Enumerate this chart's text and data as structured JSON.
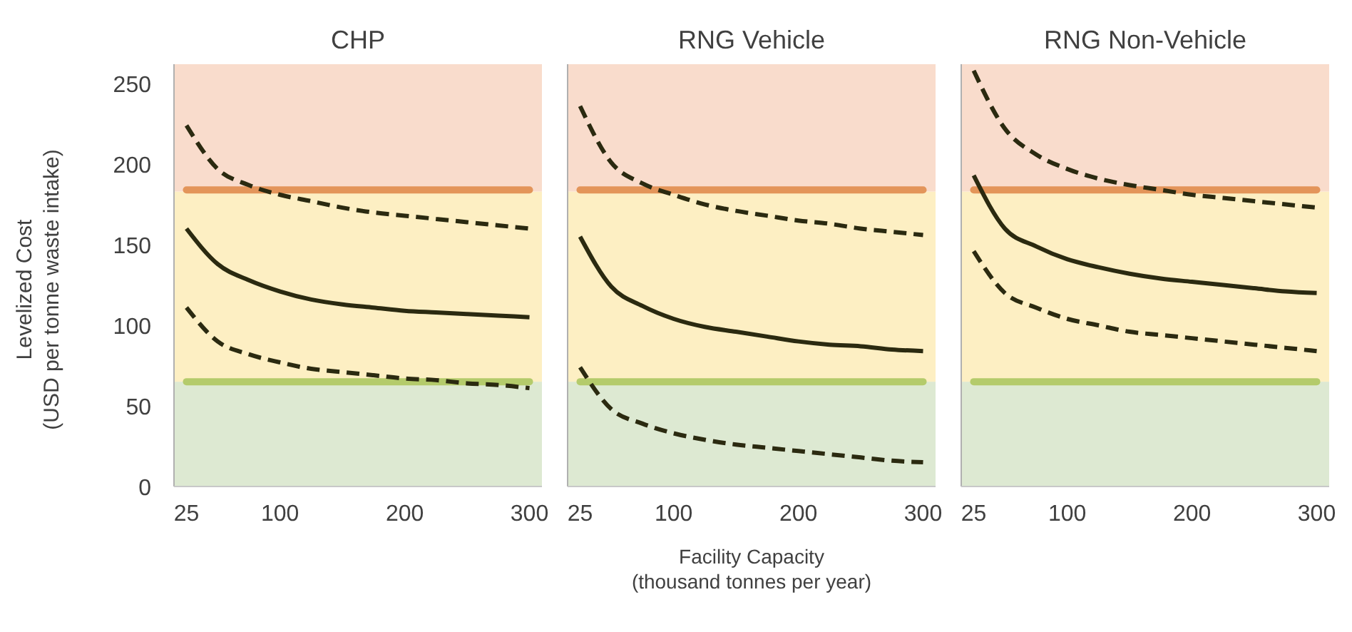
{
  "chart_data": [
    {
      "type": "line",
      "title": "CHP",
      "ylabel": "Levelized Cost\n(USD per tonne waste intake)",
      "x": [
        25,
        50,
        75,
        100,
        125,
        150,
        175,
        200,
        225,
        250,
        275,
        300
      ],
      "xlim": [
        15,
        310
      ],
      "xticks": [
        25,
        100,
        200,
        300
      ],
      "ylim": [
        0,
        262
      ],
      "yticks": [
        0,
        50,
        100,
        150,
        200,
        250
      ],
      "bands": [
        {
          "axis": "y",
          "from": 0,
          "to": 65,
          "color": "#dde9d2"
        },
        {
          "axis": "y",
          "from": 65,
          "to": 183,
          "color": "#fdefc3"
        },
        {
          "axis": "y",
          "from": 183,
          "to": 262,
          "color": "#f9dccc"
        }
      ],
      "ref_lines": [
        {
          "axis": "y",
          "value": 184,
          "color": "#e3955a"
        },
        {
          "axis": "y",
          "value": 65,
          "color": "#b4cb6b"
        }
      ],
      "series": [
        {
          "color": "#2b2a10",
          "line_style": "dashed",
          "values": [
            224,
            197,
            187,
            181,
            177,
            173,
            170,
            168,
            166,
            164,
            162,
            160
          ]
        },
        {
          "color": "#2b2a10",
          "line_style": "solid",
          "values": [
            160,
            138,
            128,
            121,
            116,
            113,
            111,
            109,
            108,
            107,
            106,
            105
          ]
        },
        {
          "color": "#2b2a10",
          "line_style": "dashed",
          "values": [
            111,
            90,
            82,
            77,
            73,
            71,
            69,
            67,
            66,
            64,
            63,
            61
          ]
        }
      ]
    },
    {
      "type": "line",
      "title": "RNG Vehicle",
      "xlabel": "Facility Capacity\n(thousand tonnes per year)",
      "tick_labels": "x",
      "x": [
        25,
        50,
        75,
        100,
        125,
        150,
        175,
        200,
        225,
        250,
        275,
        300
      ],
      "xlim": [
        15,
        310
      ],
      "xticks": [
        25,
        100,
        200,
        300
      ],
      "ylim": [
        0,
        262
      ],
      "bands": [
        {
          "axis": "y",
          "from": 0,
          "to": 65,
          "color": "#dde9d2"
        },
        {
          "axis": "y",
          "from": 65,
          "to": 183,
          "color": "#fdefc3"
        },
        {
          "axis": "y",
          "from": 183,
          "to": 262,
          "color": "#f9dccc"
        }
      ],
      "ref_lines": [
        {
          "axis": "y",
          "value": 184,
          "color": "#e3955a"
        },
        {
          "axis": "y",
          "value": 65,
          "color": "#b4cb6b"
        }
      ],
      "series": [
        {
          "color": "#2b2a10",
          "line_style": "dashed",
          "values": [
            236,
            201,
            188,
            181,
            175,
            171,
            168,
            165,
            163,
            160,
            158,
            156
          ]
        },
        {
          "color": "#2b2a10",
          "line_style": "solid",
          "values": [
            155,
            124,
            112,
            104,
            99,
            96,
            93,
            90,
            88,
            87,
            85,
            84
          ]
        },
        {
          "color": "#2b2a10",
          "line_style": "dashed",
          "values": [
            74,
            48,
            39,
            33,
            29,
            26,
            24,
            22,
            20,
            18,
            16,
            15
          ]
        }
      ]
    },
    {
      "type": "line",
      "title": "RNG Non-Vehicle",
      "tick_labels": "x",
      "x": [
        25,
        50,
        75,
        100,
        125,
        150,
        175,
        200,
        225,
        250,
        275,
        300
      ],
      "xlim": [
        15,
        310
      ],
      "xticks": [
        25,
        100,
        200,
        300
      ],
      "ylim": [
        0,
        262
      ],
      "bands": [
        {
          "axis": "y",
          "from": 0,
          "to": 65,
          "color": "#dde9d2"
        },
        {
          "axis": "y",
          "from": 65,
          "to": 183,
          "color": "#fdefc3"
        },
        {
          "axis": "y",
          "from": 183,
          "to": 262,
          "color": "#f9dccc"
        }
      ],
      "ref_lines": [
        {
          "axis": "y",
          "value": 184,
          "color": "#e3955a"
        },
        {
          "axis": "y",
          "value": 65,
          "color": "#b4cb6b"
        }
      ],
      "series": [
        {
          "color": "#2b2a10",
          "line_style": "dashed",
          "values": [
            258,
            222,
            206,
            197,
            191,
            187,
            184,
            181,
            179,
            177,
            175,
            173
          ]
        },
        {
          "color": "#2b2a10",
          "line_style": "solid",
          "values": [
            193,
            160,
            149,
            141,
            136,
            132,
            129,
            127,
            125,
            123,
            121,
            120
          ]
        },
        {
          "color": "#2b2a10",
          "line_style": "dashed",
          "values": [
            146,
            120,
            111,
            104,
            100,
            96,
            94,
            92,
            90,
            88,
            86,
            84
          ]
        }
      ]
    }
  ]
}
